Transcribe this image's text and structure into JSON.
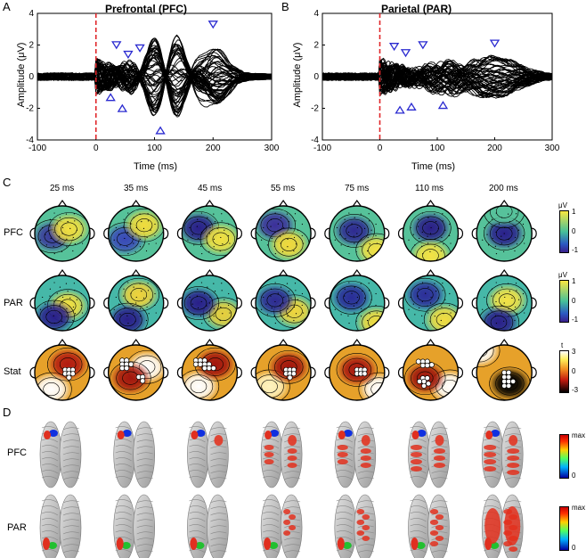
{
  "panels": {
    "A": {
      "letter": "A",
      "title": "Prefrontal (PFC)",
      "ylabel": "Amplitude (μV)",
      "xlabel": "Time (ms)",
      "xticks": [
        "-100",
        "0",
        "100",
        "200",
        "300"
      ],
      "yticks": [
        "4",
        "2",
        "0",
        "-2",
        "-4"
      ]
    },
    "B": {
      "letter": "B",
      "title": "Parietal (PAR)",
      "ylabel": "Amplitude (μV)",
      "xlabel": "Time (ms)",
      "xticks": [
        "-100",
        "0",
        "100",
        "200",
        "300"
      ],
      "yticks": [
        "4",
        "2",
        "0",
        "-2",
        "-4"
      ]
    },
    "C": {
      "letter": "C",
      "times": [
        "25 ms",
        "35 ms",
        "45 ms",
        "55 ms",
        "75 ms",
        "110 ms",
        "200 ms"
      ],
      "rows": [
        "PFC",
        "PAR",
        "Stat"
      ],
      "cb_uv": {
        "unit": "μV",
        "top": "1",
        "mid": "0",
        "bot": "-1"
      },
      "cb_t": {
        "unit": "t",
        "top": "3",
        "mid": "0",
        "bot": "-3"
      }
    },
    "D": {
      "letter": "D",
      "rows": [
        "PFC",
        "PAR"
      ],
      "cb": {
        "top": "max",
        "bot": "0"
      }
    }
  },
  "chart_data": [
    {
      "type": "line",
      "title": "Prefrontal (PFC)",
      "xlabel": "Time (ms)",
      "ylabel": "Amplitude (μV)",
      "xlim": [
        -100,
        300
      ],
      "ylim": [
        -4,
        4
      ],
      "stim_marker_x": 0,
      "peak_markers": [
        {
          "x": 25,
          "y": -1.3,
          "dir": "up"
        },
        {
          "x": 35,
          "y": 2.0,
          "dir": "down"
        },
        {
          "x": 45,
          "y": -2.0,
          "dir": "up"
        },
        {
          "x": 55,
          "y": 1.4,
          "dir": "down"
        },
        {
          "x": 75,
          "y": 1.8,
          "dir": "down"
        },
        {
          "x": 110,
          "y": -3.4,
          "dir": "up"
        },
        {
          "x": 200,
          "y": 3.3,
          "dir": "down"
        }
      ]
    },
    {
      "type": "line",
      "title": "Parietal (PAR)",
      "xlabel": "Time (ms)",
      "ylabel": "Amplitude (μV)",
      "xlim": [
        -100,
        300
      ],
      "ylim": [
        -4,
        4
      ],
      "stim_marker_x": 0,
      "peak_markers": [
        {
          "x": 25,
          "y": 1.9,
          "dir": "down"
        },
        {
          "x": 35,
          "y": -2.1,
          "dir": "up"
        },
        {
          "x": 45,
          "y": 1.5,
          "dir": "down"
        },
        {
          "x": 55,
          "y": -1.9,
          "dir": "up"
        },
        {
          "x": 75,
          "y": 2.0,
          "dir": "down"
        },
        {
          "x": 110,
          "y": -1.8,
          "dir": "up"
        },
        {
          "x": 200,
          "y": 2.1,
          "dir": "down"
        }
      ]
    }
  ]
}
